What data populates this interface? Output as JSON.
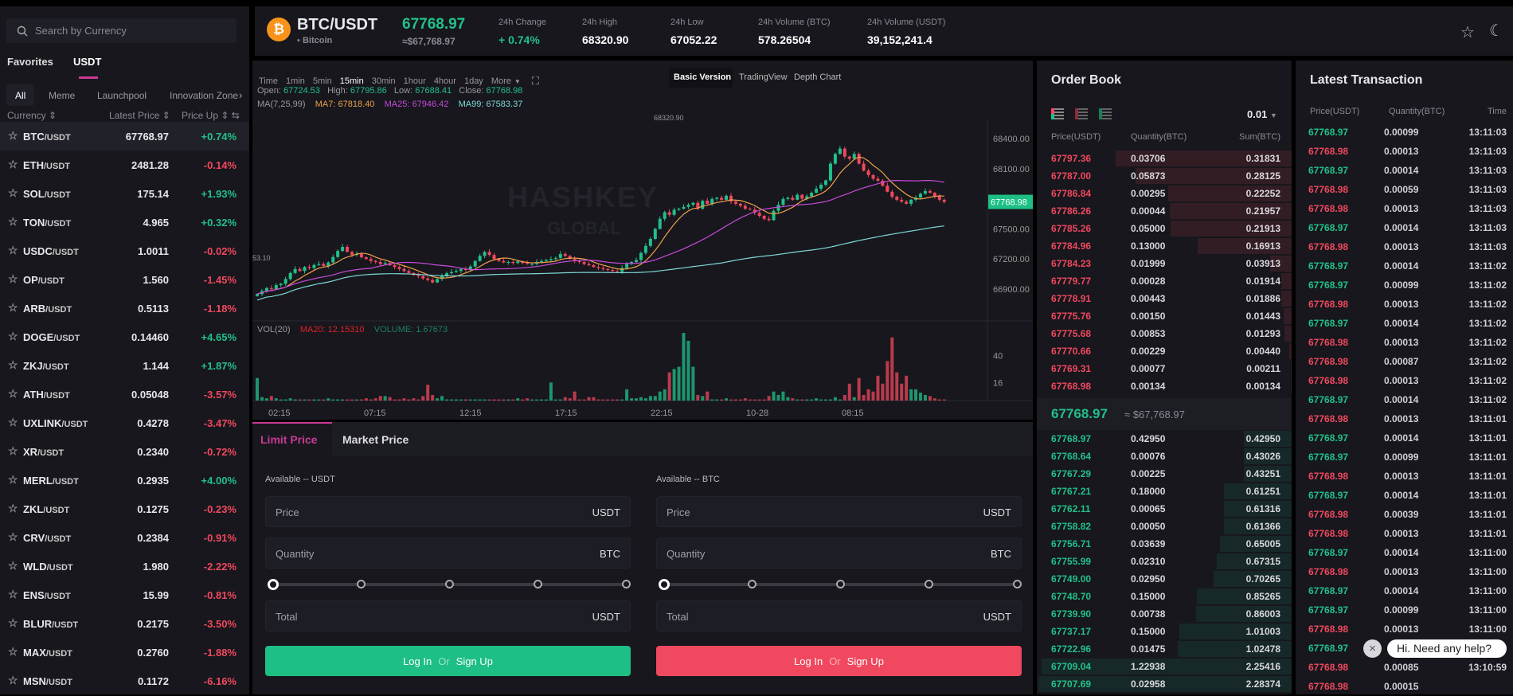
{
  "colors": {
    "up": "#22c08a",
    "down": "#f0485e",
    "accent": "#c83a96",
    "ma7": "#f0a04a",
    "ma25": "#c84ad8",
    "ma99": "#7fd8d8"
  },
  "sidebar": {
    "search_placeholder": "Search by Currency",
    "tabs": [
      "Favorites",
      "USDT"
    ],
    "active_tab": "USDT",
    "subtabs": [
      "All",
      "Meme",
      "Launchpool",
      "Innovation Zone"
    ],
    "columns": [
      "Currency",
      "Latest Price",
      "Price Up"
    ],
    "pairs": [
      {
        "base": "BTC",
        "quote": "/USDT",
        "price": "67768.97",
        "change": "+0.74%"
      },
      {
        "base": "ETH",
        "quote": "/USDT",
        "price": "2481.28",
        "change": "-0.14%"
      },
      {
        "base": "SOL",
        "quote": "/USDT",
        "price": "175.14",
        "change": "+1.93%"
      },
      {
        "base": "TON",
        "quote": "/USDT",
        "price": "4.965",
        "change": "+0.32%"
      },
      {
        "base": "USDC",
        "quote": "/USDT",
        "price": "1.0011",
        "change": "-0.02%"
      },
      {
        "base": "OP",
        "quote": "/USDT",
        "price": "1.560",
        "change": "-1.45%"
      },
      {
        "base": "ARB",
        "quote": "/USDT",
        "price": "0.5113",
        "change": "-1.18%"
      },
      {
        "base": "DOGE",
        "quote": "/USDT",
        "price": "0.14460",
        "change": "+4.65%"
      },
      {
        "base": "ZKJ",
        "quote": "/USDT",
        "price": "1.144",
        "change": "+1.87%"
      },
      {
        "base": "ATH",
        "quote": "/USDT",
        "price": "0.05048",
        "change": "-3.57%"
      },
      {
        "base": "UXLINK",
        "quote": "/USDT",
        "price": "0.4278",
        "change": "-3.47%"
      },
      {
        "base": "XR",
        "quote": "/USDT",
        "price": "0.2340",
        "change": "-0.72%"
      },
      {
        "base": "MERL",
        "quote": "/USDT",
        "price": "0.2935",
        "change": "+4.00%"
      },
      {
        "base": "ZKL",
        "quote": "/USDT",
        "price": "0.1275",
        "change": "-0.23%"
      },
      {
        "base": "CRV",
        "quote": "/USDT",
        "price": "0.2384",
        "change": "-0.91%"
      },
      {
        "base": "WLD",
        "quote": "/USDT",
        "price": "1.980",
        "change": "-2.22%"
      },
      {
        "base": "ENS",
        "quote": "/USDT",
        "price": "15.99",
        "change": "-0.81%"
      },
      {
        "base": "BLUR",
        "quote": "/USDT",
        "price": "0.2175",
        "change": "-3.50%"
      },
      {
        "base": "MAX",
        "quote": "/USDT",
        "price": "0.2760",
        "change": "-1.88%"
      },
      {
        "base": "MSN",
        "quote": "/USDT",
        "price": "0.1172",
        "change": "-6.16%"
      }
    ]
  },
  "header": {
    "pair": "BTC/USDT",
    "coin_name": "Bitcoin",
    "price": "67768.97",
    "price_usd": "≈$67,768.97",
    "stats": [
      {
        "label": "24h Change",
        "value": "+ 0.74%"
      },
      {
        "label": "24h High",
        "value": "68320.90"
      },
      {
        "label": "24h Low",
        "value": "67052.22"
      },
      {
        "label": "24h Volume (BTC)",
        "value": "578.26504"
      },
      {
        "label": "24h Volume (USDT)",
        "value": "39,152,241.4"
      }
    ]
  },
  "chart": {
    "intervals": [
      "Time",
      "1min",
      "5min",
      "15min",
      "30min",
      "1hour",
      "4hour",
      "1day",
      "More"
    ],
    "active_interval": "15min",
    "views": [
      "Basic Version",
      "TradingView",
      "Depth Chart"
    ],
    "active_view": "Basic Version",
    "ohlc": {
      "open_label": "Open:",
      "open": "67724.53",
      "high_label": "High:",
      "high": "67795.86",
      "low_label": "Low:",
      "low": "67688.41",
      "close_label": "Close:",
      "close": "67768.98"
    },
    "ma": {
      "label": "MA(7,25,99)",
      "ma7": "MA7: 67818.40",
      "ma25": "MA25: 67946.42",
      "ma99": "MA99: 67583.37"
    },
    "vol": {
      "label": "VOL(20)",
      "ma20": "MA20: 12.15310",
      "volume": "VOLUME: 1.67673"
    },
    "watermark": "HASHKEY GLOBAL",
    "high_marker": "68320.90",
    "low_marker": "53.10",
    "last_price_tag": "67768.98"
  },
  "chart_data": {
    "type": "candlestick",
    "interval": "15min",
    "price_ticks": [
      68400,
      68100,
      67500,
      67200,
      66900
    ],
    "price_range": [
      66840,
      68460
    ],
    "volume_ticks": [
      40,
      16
    ],
    "time_ticks": [
      "02:15",
      "07:15",
      "12:15",
      "17:15",
      "22:15",
      "10-28",
      "08:15"
    ],
    "closes": [
      66850,
      66880,
      66910,
      66900,
      66940,
      66953,
      67000,
      67060,
      67100,
      67080,
      67120,
      67110,
      67140,
      67150,
      67130,
      67165,
      67220,
      67280,
      67320,
      67270,
      67240,
      67250,
      67217,
      67200,
      67180,
      67170,
      67150,
      67160,
      67138,
      67120,
      67100,
      67080,
      67060,
      67040,
      67030,
      67006,
      66990,
      66966,
      67000,
      67030,
      67058,
      67070,
      67080,
      67100,
      67090,
      67125,
      67180,
      67230,
      67270,
      67240,
      67200,
      67180,
      67165,
      67170,
      67160,
      67175,
      67160,
      67150,
      67151,
      67170,
      67180,
      67190,
      67200,
      67210,
      67250,
      67230,
      67200,
      67180,
      67170,
      67150,
      67138,
      67120,
      67110,
      67100,
      67090,
      67080,
      67072,
      67110,
      67150,
      67170,
      67190,
      67260,
      67330,
      67400,
      67500,
      67600,
      67666,
      67640,
      67690,
      67700,
      67719,
      67740,
      67760,
      67700,
      67780,
      67750,
      67798,
      67810,
      67790,
      67830,
      67772,
      67750,
      67730,
      67700,
      67692,
      67660,
      67630,
      67600,
      67587,
      67680,
      67740,
      67798,
      67810,
      67790,
      67840,
      67800,
      67824,
      67860,
      67900,
      67940,
      67983,
      68150,
      68247,
      68300,
      68220,
      68200,
      68247,
      68150,
      68080,
      68036,
      68000,
      67980,
      67930,
      67870,
      67820,
      67790,
      67771,
      67750,
      67790,
      67812,
      67850,
      67877,
      67860,
      67824,
      67790,
      67769
    ],
    "volumes": [
      20,
      3,
      2,
      4,
      2,
      1,
      1,
      2,
      1,
      1,
      1,
      1,
      1,
      1,
      1,
      2,
      1,
      1,
      1,
      1,
      1,
      1,
      1,
      2,
      1,
      2,
      4,
      4,
      3,
      1,
      1,
      2,
      1,
      2,
      1,
      4,
      14,
      5,
      2,
      4,
      1,
      1,
      1,
      1,
      1,
      1,
      1,
      1,
      1,
      1,
      1,
      1,
      1,
      1,
      1,
      2,
      1,
      2,
      1,
      1,
      1,
      1,
      16,
      1,
      1,
      3,
      2,
      8,
      1,
      1,
      3,
      3,
      1,
      1,
      1,
      1,
      1,
      1,
      10,
      2,
      2,
      3,
      2,
      4,
      4,
      8,
      10,
      25,
      28,
      30,
      60,
      53,
      30,
      5,
      4,
      8,
      1,
      1,
      1,
      2,
      1,
      1,
      1,
      2,
      1,
      1,
      1,
      1,
      4,
      8,
      5,
      8,
      3,
      2,
      1,
      1,
      1,
      1,
      2,
      1,
      1,
      1,
      3,
      1,
      5,
      15,
      3,
      20,
      5,
      10,
      8,
      22,
      15,
      35,
      56,
      25,
      15,
      22,
      10,
      10,
      7,
      5,
      4,
      2,
      1,
      1
    ]
  },
  "form": {
    "tabs": [
      "Limit Price",
      "Market Price"
    ],
    "buy": {
      "available": "Available -- USDT",
      "price": "Price",
      "price_unit": "USDT",
      "qty": "Quantity",
      "qty_unit": "BTC",
      "total": "Total",
      "total_unit": "USDT",
      "login": "Log In",
      "or": "Or",
      "signup": "Sign Up"
    },
    "sell": {
      "available": "Available -- BTC",
      "price": "Price",
      "price_unit": "USDT",
      "qty": "Quantity",
      "qty_unit": "BTC",
      "total": "Total",
      "total_unit": "USDT",
      "login": "Log In",
      "or": "Or",
      "signup": "Sign Up"
    }
  },
  "orderbook": {
    "title": "Order Book",
    "precision": "0.01",
    "columns": [
      "Price(USDT)",
      "Quantity(BTC)",
      "Sum(BTC)"
    ],
    "asks": [
      [
        "67797.36",
        "0.03706",
        "0.31831"
      ],
      [
        "67787.00",
        "0.05873",
        "0.28125"
      ],
      [
        "67786.84",
        "0.00295",
        "0.22252"
      ],
      [
        "67786.26",
        "0.00044",
        "0.21957"
      ],
      [
        "67785.26",
        "0.05000",
        "0.21913"
      ],
      [
        "67784.96",
        "0.13000",
        "0.16913"
      ],
      [
        "67784.23",
        "0.01999",
        "0.03913"
      ],
      [
        "67779.77",
        "0.00028",
        "0.01914"
      ],
      [
        "67778.91",
        "0.00443",
        "0.01886"
      ],
      [
        "67775.76",
        "0.00150",
        "0.01443"
      ],
      [
        "67775.68",
        "0.00853",
        "0.01293"
      ],
      [
        "67770.66",
        "0.00229",
        "0.00440"
      ],
      [
        "67769.31",
        "0.00077",
        "0.00211"
      ],
      [
        "67768.98",
        "0.00134",
        "0.00134"
      ]
    ],
    "mid_price": "67768.97",
    "mid_usd": "≈ $67,768.97",
    "bids": [
      [
        "67768.97",
        "0.42950",
        "0.42950"
      ],
      [
        "67768.64",
        "0.00076",
        "0.43026"
      ],
      [
        "67767.29",
        "0.00225",
        "0.43251"
      ],
      [
        "67767.21",
        "0.18000",
        "0.61251"
      ],
      [
        "67762.11",
        "0.00065",
        "0.61316"
      ],
      [
        "67758.82",
        "0.00050",
        "0.61366"
      ],
      [
        "67756.71",
        "0.03639",
        "0.65005"
      ],
      [
        "67755.99",
        "0.02310",
        "0.67315"
      ],
      [
        "67749.00",
        "0.02950",
        "0.70265"
      ],
      [
        "67748.70",
        "0.15000",
        "0.85265"
      ],
      [
        "67739.90",
        "0.00738",
        "0.86003"
      ],
      [
        "67737.17",
        "0.15000",
        "1.01003"
      ],
      [
        "67722.96",
        "0.01475",
        "1.02478"
      ],
      [
        "67709.04",
        "1.22938",
        "2.25416"
      ],
      [
        "67707.69",
        "0.02958",
        "2.28374"
      ]
    ]
  },
  "trades": {
    "title": "Latest Transaction",
    "columns": [
      "Price(USDT)",
      "Quantity(BTC)",
      "Time"
    ],
    "rows": [
      [
        "67768.97",
        "0.00099",
        "13:11:03",
        "buy"
      ],
      [
        "67768.98",
        "0.00013",
        "13:11:03",
        "sell"
      ],
      [
        "67768.97",
        "0.00014",
        "13:11:03",
        "buy"
      ],
      [
        "67768.98",
        "0.00059",
        "13:11:03",
        "sell"
      ],
      [
        "67768.98",
        "0.00013",
        "13:11:03",
        "sell"
      ],
      [
        "67768.97",
        "0.00014",
        "13:11:03",
        "buy"
      ],
      [
        "67768.98",
        "0.00013",
        "13:11:03",
        "sell"
      ],
      [
        "67768.97",
        "0.00014",
        "13:11:02",
        "buy"
      ],
      [
        "67768.97",
        "0.00099",
        "13:11:02",
        "buy"
      ],
      [
        "67768.98",
        "0.00013",
        "13:11:02",
        "sell"
      ],
      [
        "67768.97",
        "0.00014",
        "13:11:02",
        "buy"
      ],
      [
        "67768.98",
        "0.00013",
        "13:11:02",
        "sell"
      ],
      [
        "67768.98",
        "0.00087",
        "13:11:02",
        "sell"
      ],
      [
        "67768.98",
        "0.00013",
        "13:11:02",
        "sell"
      ],
      [
        "67768.97",
        "0.00014",
        "13:11:02",
        "buy"
      ],
      [
        "67768.98",
        "0.00013",
        "13:11:01",
        "sell"
      ],
      [
        "67768.97",
        "0.00014",
        "13:11:01",
        "buy"
      ],
      [
        "67768.97",
        "0.00099",
        "13:11:01",
        "buy"
      ],
      [
        "67768.98",
        "0.00013",
        "13:11:01",
        "sell"
      ],
      [
        "67768.97",
        "0.00014",
        "13:11:01",
        "buy"
      ],
      [
        "67768.98",
        "0.00039",
        "13:11:01",
        "sell"
      ],
      [
        "67768.98",
        "0.00013",
        "13:11:01",
        "sell"
      ],
      [
        "67768.97",
        "0.00014",
        "13:11:00",
        "buy"
      ],
      [
        "67768.98",
        "0.00013",
        "13:11:00",
        "sell"
      ],
      [
        "67768.97",
        "0.00014",
        "13:11:00",
        "buy"
      ],
      [
        "67768.97",
        "0.00099",
        "13:11:00",
        "buy"
      ],
      [
        "67768.98",
        "0.00013",
        "13:11:00",
        "sell"
      ],
      [
        "67768.97",
        "",
        "",
        "buy"
      ],
      [
        "67768.98",
        "0.00085",
        "13:10:59",
        "sell"
      ],
      [
        "67768.98",
        "0.00015",
        "",
        "sell"
      ]
    ]
  },
  "help": {
    "message": "Hi. Need any help?"
  }
}
